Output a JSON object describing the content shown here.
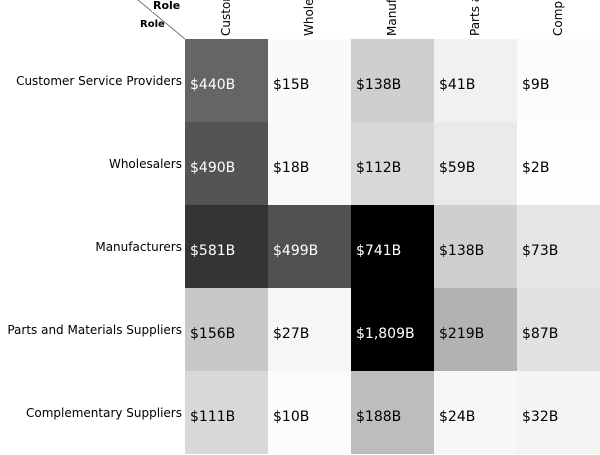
{
  "chart_data": {
    "type": "heatmap",
    "row_axis_label": "Role",
    "column_axis_label": "Role",
    "rows": [
      "Customer Service Providers",
      "Wholesalers",
      "Manufacturers",
      "Parts and Materials Suppliers",
      "Complementary Suppliers"
    ],
    "columns": [
      "Customer Service Providers",
      "Wholesalers",
      "Manufacturers",
      "Parts and Materials Suppliers",
      "Complementary Suppliers"
    ],
    "values": [
      [
        440,
        15,
        138,
        41,
        9
      ],
      [
        490,
        18,
        112,
        59,
        2
      ],
      [
        581,
        499,
        741,
        138,
        73
      ],
      [
        156,
        27,
        1809,
        219,
        87
      ],
      [
        111,
        10,
        188,
        24,
        32
      ]
    ],
    "labels": [
      [
        "$440B",
        "$15B",
        "$138B",
        "$41B",
        "$9B"
      ],
      [
        "$490B",
        "$18B",
        "$112B",
        "$59B",
        "$2B"
      ],
      [
        "$581B",
        "$499B",
        "$741B",
        "$138B",
        "$73B"
      ],
      [
        "$156B",
        "$27B",
        "$1,809B",
        "$219B",
        "$87B"
      ],
      [
        "$111B",
        "$10B",
        "$188B",
        "$24B",
        "$32B"
      ]
    ],
    "unit": "billions USD",
    "color_scale": {
      "low": "#ffffff",
      "high": "#000000"
    }
  }
}
